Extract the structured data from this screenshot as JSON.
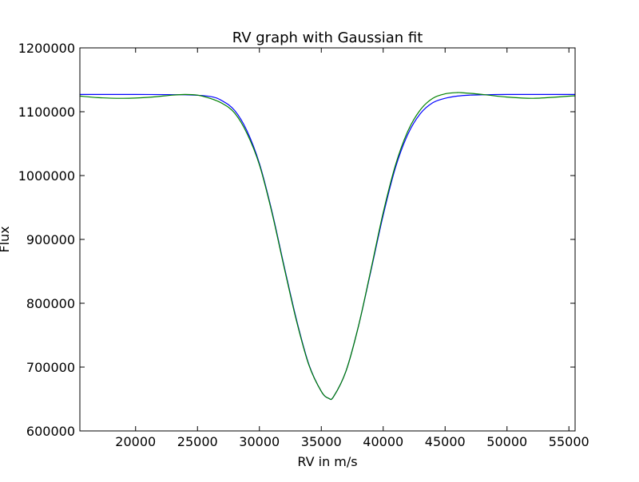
{
  "chart_data": {
    "type": "line",
    "title": "RV graph with Gaussian fit",
    "xlabel": "RV in m/s",
    "ylabel": "Flux",
    "xlim": [
      15500,
      55500
    ],
    "ylim": [
      600000,
      1200000
    ],
    "xticks": [
      20000,
      25000,
      30000,
      35000,
      40000,
      45000,
      50000,
      55000
    ],
    "yticks": [
      600000,
      700000,
      800000,
      900000,
      1000000,
      1100000,
      1200000
    ],
    "grid": false,
    "legend": "none",
    "series": [
      {
        "color": "#0000ff",
        "x": [
          15500,
          20000,
          24000,
          26000,
          27000,
          28000,
          29000,
          30000,
          31000,
          32000,
          33000,
          34000,
          35000,
          35600,
          36000,
          37000,
          38000,
          39000,
          40000,
          41000,
          42000,
          43000,
          44000,
          45000,
          46000,
          47000,
          48000,
          50000,
          55500
        ],
        "y": [
          1127000,
          1127000,
          1126500,
          1124000,
          1117000,
          1102000,
          1070000,
          1019000,
          945000,
          858000,
          774000,
          704000,
          662000,
          651000,
          654000,
          694000,
          764000,
          850000,
          938000,
          1013000,
          1065000,
          1097000,
          1114000,
          1121000,
          1124500,
          1126000,
          1126500,
          1127000,
          1127000
        ]
      },
      {
        "color": "#008000",
        "x": [
          15500,
          17000,
          19000,
          21000,
          23000,
          24000,
          25000,
          26000,
          27000,
          28000,
          29000,
          30000,
          31000,
          32000,
          33000,
          34000,
          35000,
          35600,
          36000,
          37000,
          38000,
          39000,
          40000,
          41000,
          42000,
          43000,
          44000,
          45000,
          46000,
          46500,
          47500,
          48500,
          50000,
          52000,
          54000,
          55500
        ],
        "y": [
          1124500,
          1122000,
          1121000,
          1122500,
          1126000,
          1127000,
          1126000,
          1121000,
          1113000,
          1098000,
          1066000,
          1017000,
          943000,
          856000,
          772000,
          703000,
          662000,
          651000,
          654000,
          694000,
          764000,
          852000,
          942000,
          1017000,
          1070000,
          1103000,
          1121000,
          1128000,
          1130000,
          1129500,
          1128000,
          1126000,
          1123000,
          1121000,
          1123000,
          1125000
        ]
      }
    ]
  }
}
